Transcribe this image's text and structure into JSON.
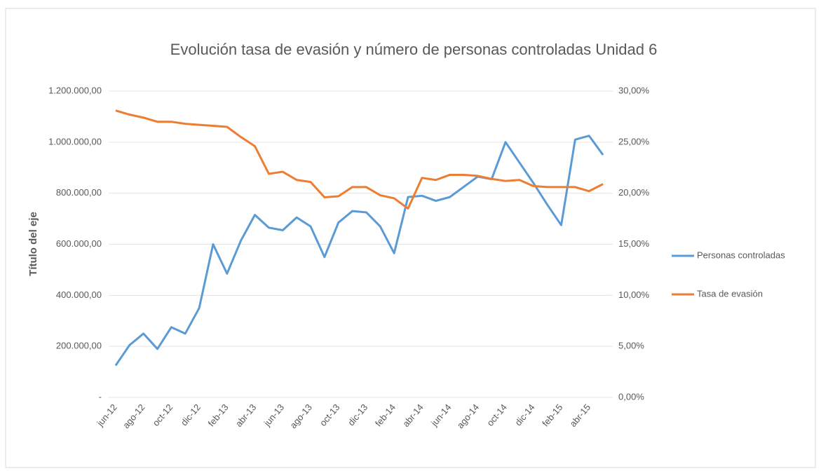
{
  "chart_data": {
    "type": "line",
    "title": "Evolución tasa de evasión y número de personas controladas Unidad 6",
    "y_label": "Título del eje",
    "categories": [
      "jun-12",
      null,
      "ago-12",
      null,
      "oct-12",
      null,
      "dic-12",
      null,
      "feb-13",
      null,
      "abr-13",
      null,
      "jun-13",
      null,
      "ago-13",
      null,
      "oct-13",
      null,
      "dic-13",
      null,
      "feb-14",
      null,
      "abr-14",
      null,
      "jun-14",
      null,
      "ago-14",
      null,
      "oct-14",
      null,
      "dic-14",
      null,
      "feb-15",
      null,
      "abr-15",
      null
    ],
    "series": [
      {
        "name": "Personas controladas",
        "color": "#5b9bd5",
        "values": [
          125000,
          205000,
          250000,
          190000,
          275000,
          250000,
          350000,
          600000,
          485000,
          615000,
          715000,
          665000,
          655000,
          705000,
          670000,
          550000,
          685000,
          730000,
          725000,
          670000,
          565000,
          785000,
          790000,
          770000,
          785000,
          825000,
          865000,
          855000,
          1000000,
          920000,
          840000,
          755000,
          675000,
          1010000,
          1025000,
          950000
        ]
      },
      {
        "name": "Tasa de evasión",
        "color": "#ed7d31",
        "axis": "y2",
        "values": [
          28.1,
          27.7,
          27.4,
          27.0,
          27.0,
          26.8,
          26.7,
          26.6,
          26.5,
          25.5,
          24.6,
          21.9,
          22.1,
          21.3,
          21.1,
          19.6,
          19.7,
          20.6,
          20.6,
          19.8,
          19.5,
          18.5,
          21.5,
          21.3,
          21.8,
          21.8,
          21.7,
          21.4,
          21.2,
          21.3,
          20.7,
          20.6,
          20.6,
          20.6,
          20.2,
          20.9
        ]
      }
    ],
    "ylim": [
      0,
      1200000
    ],
    "yticks": [
      {
        "value": 0,
        "label": "-"
      },
      {
        "value": 200000,
        "label": "200.000,00"
      },
      {
        "value": 400000,
        "label": "400.000,00"
      },
      {
        "value": 600000,
        "label": "600.000,00"
      },
      {
        "value": 800000,
        "label": "800.000,00"
      },
      {
        "value": 1000000,
        "label": "1.000.000,00"
      },
      {
        "value": 1200000,
        "label": "1.200.000,00"
      }
    ],
    "y2lim": [
      0,
      30
    ],
    "y2ticks": [
      {
        "value": 0,
        "label": "0,00%"
      },
      {
        "value": 5,
        "label": "5,00%"
      },
      {
        "value": 10,
        "label": "10,00%"
      },
      {
        "value": 15,
        "label": "15,00%"
      },
      {
        "value": 20,
        "label": "20,00%"
      },
      {
        "value": 25,
        "label": "25,00%"
      },
      {
        "value": 30,
        "label": "30,00%"
      }
    ],
    "grid": true,
    "legend": "right"
  }
}
